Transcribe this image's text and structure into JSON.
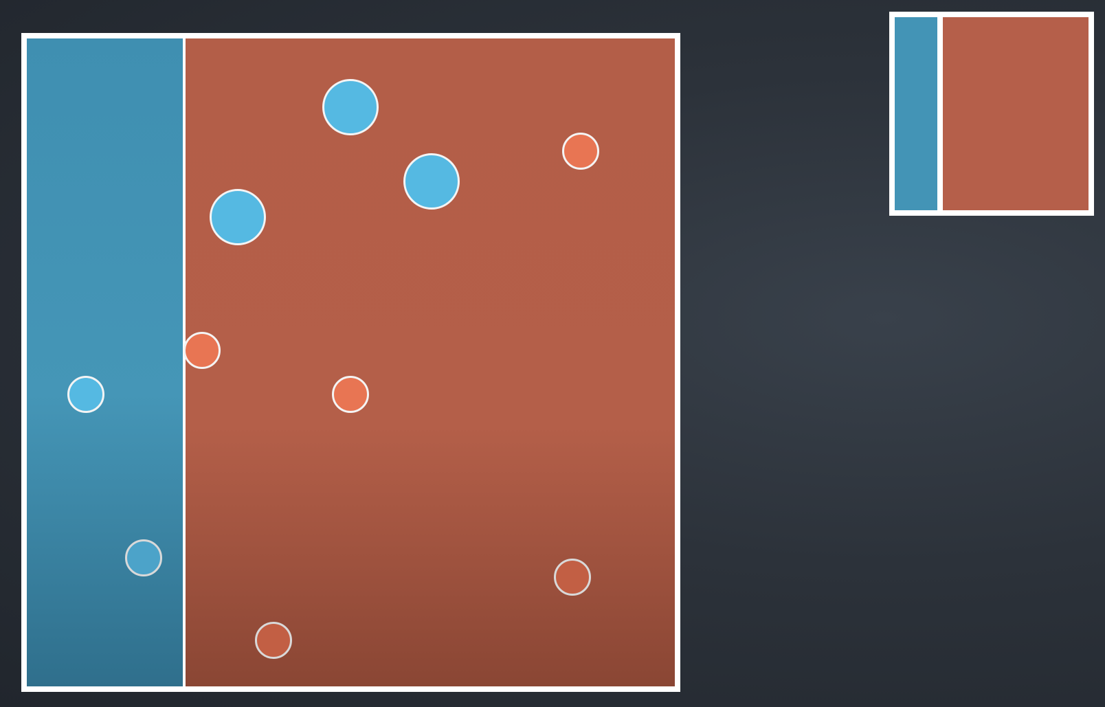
{
  "diagram": {
    "colors": {
      "background": "#2c323a",
      "frame": "#ffffff",
      "blue_region": "#4394b6",
      "red_region": "#b35e47",
      "blue_point": "#55b9e2",
      "blue_point_faded": "#4ca3c9",
      "orange_point": "#e87553",
      "orange_point_faded": "#c25f44"
    },
    "main_partition": {
      "split_fraction": 0.24,
      "left_region": "blue",
      "right_region": "red",
      "points": [
        {
          "class": "blue",
          "size": "large",
          "style": "bright"
        },
        {
          "class": "blue",
          "size": "large",
          "style": "bright"
        },
        {
          "class": "blue",
          "size": "large",
          "style": "bright"
        },
        {
          "class": "orange",
          "size": "small",
          "style": "bright"
        },
        {
          "class": "orange",
          "size": "small",
          "style": "bright"
        },
        {
          "class": "orange",
          "size": "small",
          "style": "bright"
        },
        {
          "class": "blue",
          "size": "small",
          "style": "bright"
        },
        {
          "class": "blue",
          "size": "small",
          "style": "faded"
        },
        {
          "class": "orange",
          "size": "small",
          "style": "faded"
        },
        {
          "class": "orange",
          "size": "small",
          "style": "faded"
        }
      ]
    },
    "thumbnail_partition": {
      "split_fraction": 0.22,
      "left_region": "blue",
      "right_region": "red"
    }
  }
}
